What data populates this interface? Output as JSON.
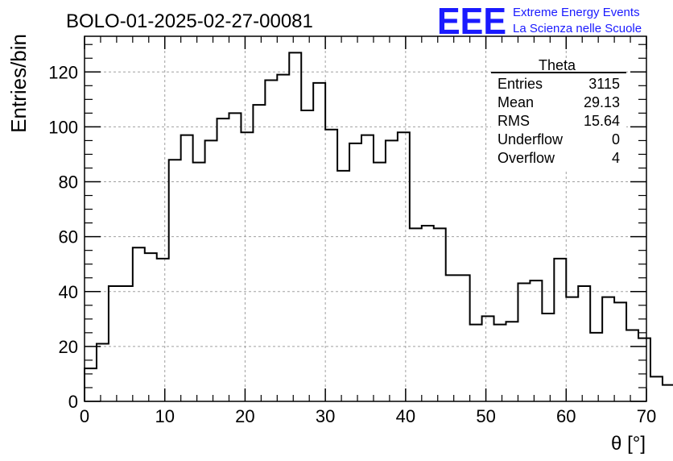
{
  "chart_data": {
    "type": "histogram",
    "title": "BOLO-01-2025-02-27-00081",
    "xlabel": "θ [°]",
    "ylabel": "Entries/bin",
    "xlim": [
      0,
      70
    ],
    "ylim": [
      0,
      133
    ],
    "xticks": [
      "0",
      "10",
      "20",
      "30",
      "40",
      "50",
      "60",
      "70"
    ],
    "yticks": [
      "0",
      "20",
      "40",
      "60",
      "80",
      "100",
      "120"
    ],
    "grid": true,
    "bin_width": 1.5,
    "bin_start": 0,
    "values": [
      12,
      21,
      42,
      42,
      56,
      54,
      52,
      88,
      97,
      87,
      95,
      103,
      105,
      98,
      108,
      117,
      119,
      127,
      106,
      116,
      99,
      84,
      94,
      97,
      87,
      95,
      98,
      63,
      64,
      63,
      46,
      46,
      28,
      31,
      28,
      29,
      43,
      44,
      32,
      52,
      38,
      42,
      25,
      38,
      36,
      26,
      23,
      9,
      6
    ],
    "stats_box": {
      "title": "Theta",
      "rows": [
        {
          "label": "Entries",
          "value": "3115"
        },
        {
          "label": "Mean",
          "value": "29.13"
        },
        {
          "label": "RMS",
          "value": "15.64"
        },
        {
          "label": "Underflow",
          "value": "0"
        },
        {
          "label": "Overflow",
          "value": "4"
        }
      ]
    },
    "logo": {
      "text": "EEE",
      "line1": "Extreme Energy Events",
      "line2": "La Scienza nelle Scuole",
      "color": "#1a1aff"
    },
    "line_color": "#000000",
    "grid_color": "#a0a0a0"
  }
}
